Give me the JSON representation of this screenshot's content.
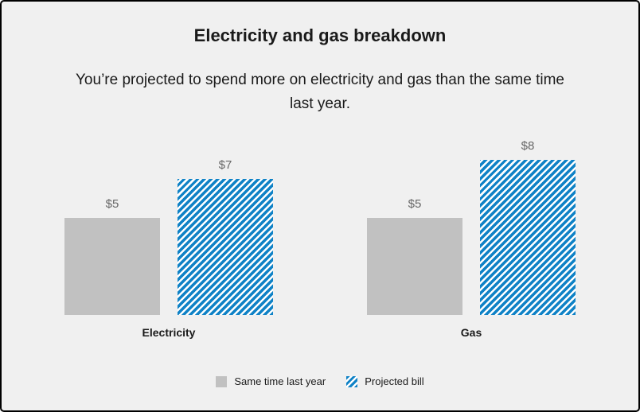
{
  "title": "Electricity and gas breakdown",
  "subtitle": "You’re projected to spend more on electricity and gas than the same time last year.",
  "colors": {
    "background": "#f0f0f0",
    "border": "#000000",
    "title_text": "#1a1a1a",
    "subtitle_text": "#1a1a1a",
    "value_label": "#666666",
    "category_label": "#1a1a1a",
    "legend_text": "#1a1a1a",
    "bar_solid": "#c1c1c1",
    "bar_stripe_blue": "#0f82c6",
    "bar_stripe_white": "#ffffff"
  },
  "chart_data": {
    "type": "bar",
    "title": "Electricity and gas breakdown",
    "subtitle": "You’re projected to spend more on electricity and gas than the same time last year.",
    "categories": [
      "Electricity",
      "Gas"
    ],
    "series": [
      {
        "name": "Same time last year",
        "style": "solid-gray",
        "values": [
          5,
          5
        ]
      },
      {
        "name": "Projected bill",
        "style": "striped-blue",
        "values": [
          7,
          8
        ]
      }
    ],
    "value_prefix": "$",
    "value_labels": [
      [
        "$5",
        "$5"
      ],
      [
        "$7",
        "$8"
      ]
    ],
    "ylim": [
      0,
      8
    ],
    "grid": false,
    "axes_shown": false,
    "legend_position": "bottom"
  }
}
